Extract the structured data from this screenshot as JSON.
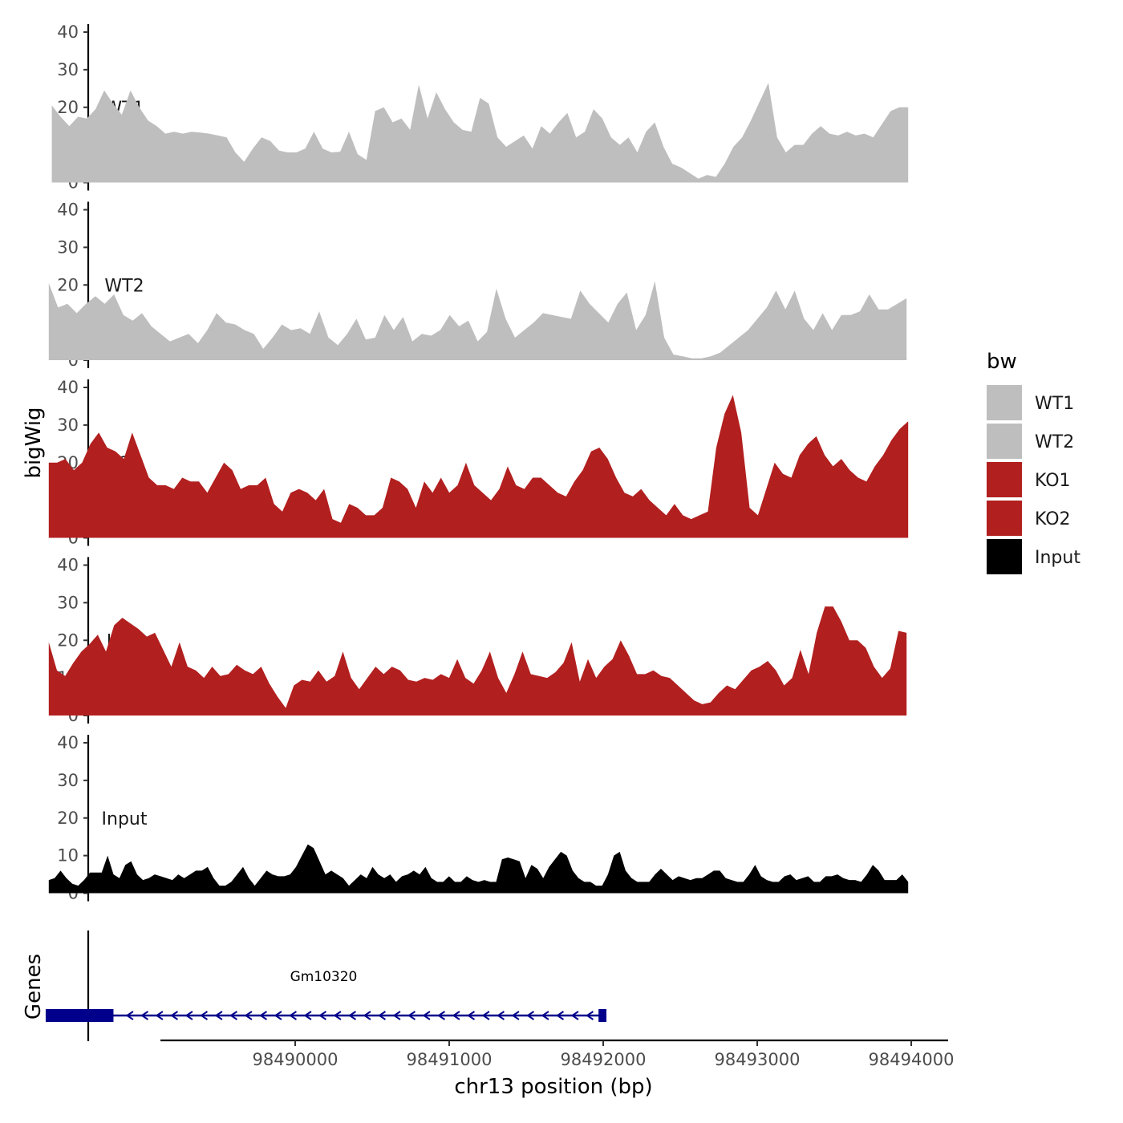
{
  "chart_data": {
    "type": "area",
    "x_axis": {
      "label": "chr13 position (bp)",
      "range": [
        98488400,
        98494000
      ],
      "ticks": [
        98490000,
        98491000,
        98492000,
        98493000,
        98494000
      ],
      "tick_labels": [
        "98490000",
        "98491000",
        "98492000",
        "98493000",
        "98494000"
      ]
    },
    "y_axis": {
      "label": "bigWig",
      "range": [
        0,
        40
      ],
      "ticks": [
        0,
        10,
        20,
        30,
        40
      ],
      "tick_labels": [
        "0",
        "10",
        "20",
        "30",
        "40"
      ]
    },
    "grid": false,
    "legend": {
      "title": "bw",
      "position": "right",
      "entries": [
        {
          "label": "WT1",
          "color": "#bebebe"
        },
        {
          "label": "WT2",
          "color": "#bebebe"
        },
        {
          "label": "KO1",
          "color": "#b21f1f"
        },
        {
          "label": "KO2",
          "color": "#b21f1f"
        },
        {
          "label": "Input",
          "color": "#000000"
        }
      ]
    },
    "series": [
      {
        "name": "WT1",
        "color": "#bebebe",
        "x_start": 98488420,
        "x_end": 98493980,
        "values": [
          20.5,
          17.5,
          15,
          17.5,
          17,
          19.5,
          24.5,
          21,
          18,
          24.5,
          20,
          16.5,
          15,
          13,
          13.5,
          13,
          13.5,
          13.3,
          13,
          12.5,
          12,
          8,
          5.5,
          9,
          12,
          11,
          8.5,
          8,
          8,
          9,
          13.5,
          9,
          8,
          8.2,
          13.5,
          7.5,
          6,
          19,
          20,
          16,
          17,
          14,
          26,
          17,
          24,
          19.5,
          16,
          14,
          13.5,
          22.5,
          21,
          12,
          9.5,
          11,
          12.5,
          9,
          15,
          13,
          16,
          18.5,
          12,
          13.5,
          19.5,
          17,
          12,
          10,
          12,
          8,
          13.5,
          16,
          9.5,
          5,
          4,
          2.5,
          1,
          2,
          1.5,
          5,
          9.5,
          12,
          16.5,
          21.5,
          26.5,
          12,
          8,
          10,
          10,
          13,
          15,
          13,
          12.5,
          13.5,
          12.5,
          13,
          12,
          15.5,
          19,
          20,
          20
        ]
      },
      {
        "name": "WT2",
        "color": "#bebebe",
        "x_start": 98488400,
        "x_end": 98493970,
        "values": [
          20.5,
          14,
          15,
          12.5,
          15,
          17,
          15,
          17.5,
          12,
          10.5,
          12.5,
          9,
          7,
          5,
          6,
          7,
          4.5,
          8,
          12.5,
          10,
          9.5,
          8,
          7,
          3,
          6,
          9.5,
          8,
          8.5,
          7,
          13,
          6,
          4,
          7,
          11,
          5.5,
          6,
          12,
          8,
          11.5,
          5,
          7,
          6.5,
          8,
          12,
          9,
          10.5,
          5,
          7.5,
          19,
          11,
          6,
          8,
          10,
          12.5,
          12,
          11.5,
          11,
          18.5,
          15,
          12.5,
          10,
          15,
          18,
          8,
          12,
          21,
          6,
          1.5,
          1,
          0.5,
          0.5,
          1,
          2,
          4,
          6,
          8,
          11,
          14,
          18.5,
          13.5,
          18.5,
          11,
          8,
          12.5,
          8,
          12,
          12,
          13,
          17.5,
          13.5,
          13.5,
          15,
          16.5
        ]
      },
      {
        "name": "KO1",
        "color": "#b21f1f",
        "x_start": 98488400,
        "x_end": 98493980,
        "values": [
          20,
          20,
          21,
          18,
          20,
          25,
          28,
          24,
          23,
          21,
          28,
          22,
          16,
          14,
          14,
          13,
          16,
          15,
          15,
          12,
          16,
          20,
          18,
          13,
          14,
          14,
          16,
          9,
          7,
          12,
          13,
          12,
          10,
          13,
          5,
          4,
          9,
          8,
          6,
          6,
          8,
          16,
          15,
          13,
          8,
          15,
          12,
          16,
          12,
          14,
          20,
          14,
          12,
          10,
          13,
          19,
          14,
          13,
          16,
          16,
          14,
          12,
          11,
          15,
          18,
          23,
          24,
          21,
          16,
          12,
          11,
          13,
          10,
          8,
          6,
          9,
          6,
          5,
          6,
          7,
          24,
          33,
          38,
          28,
          8,
          6,
          13,
          20,
          17,
          16,
          22,
          25,
          27,
          22,
          19,
          21,
          18,
          16,
          15,
          19,
          22,
          26,
          29,
          31
        ]
      },
      {
        "name": "KO2",
        "color": "#b21f1f",
        "x_start": 98488400,
        "x_end": 98493970,
        "values": [
          19.5,
          12,
          10.5,
          14,
          17,
          19,
          21.5,
          17,
          24,
          26,
          24.5,
          23,
          21,
          22,
          17.5,
          13,
          19.5,
          13,
          12,
          10,
          13,
          10.5,
          11,
          13.5,
          12,
          11,
          13,
          8.5,
          5,
          2,
          8,
          9.5,
          9,
          12,
          9,
          10.5,
          17,
          10,
          7,
          10,
          13,
          11,
          13,
          12,
          9.5,
          9,
          10,
          9.5,
          11,
          10,
          15,
          10,
          8.5,
          12,
          17,
          10,
          6,
          11,
          17,
          11,
          10.5,
          10,
          11.5,
          14,
          19.5,
          9,
          15,
          10,
          13,
          15,
          20,
          16,
          11,
          11,
          12,
          10.5,
          10,
          8,
          6,
          4,
          3,
          3.5,
          6,
          8,
          7,
          9.5,
          12,
          13,
          14.5,
          12,
          8,
          10,
          17.5,
          11,
          22,
          29,
          29,
          25,
          20,
          20,
          18,
          13,
          10,
          12.5,
          22.5,
          22
        ]
      },
      {
        "name": "Input",
        "color": "#000000",
        "x_start": 98488400,
        "x_end": 98493980,
        "values": [
          3.5,
          4,
          6,
          4,
          2.5,
          2,
          3.5,
          5.5,
          5.5,
          5.5,
          10,
          5,
          4,
          7.5,
          8.5,
          5,
          3.5,
          4,
          5,
          4.5,
          4,
          3.5,
          5,
          4,
          5,
          6,
          6,
          7,
          4,
          2,
          2,
          3,
          5,
          7,
          4,
          2,
          4,
          6,
          5,
          4.5,
          4.5,
          5,
          7,
          10,
          13,
          12,
          8.5,
          5,
          6,
          5,
          4,
          2,
          3.5,
          5,
          4,
          7,
          5,
          4,
          5,
          3,
          4.5,
          5,
          6,
          5,
          7,
          4,
          3,
          3,
          4.5,
          3,
          3,
          4.5,
          3.5,
          3,
          3.5,
          3,
          3,
          9,
          9.5,
          9,
          8.5,
          4,
          7.5,
          6.5,
          4,
          7,
          9,
          11,
          10,
          6,
          4,
          3,
          3,
          2,
          2,
          5,
          10,
          11,
          6,
          4,
          3,
          3,
          3,
          5,
          6.5,
          5,
          3.5,
          4.5,
          4,
          3.5,
          4,
          4,
          5,
          6,
          6,
          4,
          3.5,
          3,
          3,
          5,
          7.5,
          4.5,
          3.5,
          3,
          3,
          4.5,
          5,
          3.5,
          4,
          4.5,
          3,
          3,
          4.5,
          4.5,
          5,
          4,
          3.5,
          3.5,
          3,
          5,
          7.5,
          6,
          3.5,
          3.5,
          3.5,
          5,
          3
        ]
      }
    ],
    "genes_panel": {
      "label": "Genes",
      "gene": {
        "name": "Gm10320",
        "strand": "-",
        "start": 98488380,
        "end": 98492000,
        "thick_start": 98488380,
        "thick_end": 98488820,
        "end_exon": [
          98491980,
          98492000
        ],
        "color": "#00008b"
      }
    }
  }
}
